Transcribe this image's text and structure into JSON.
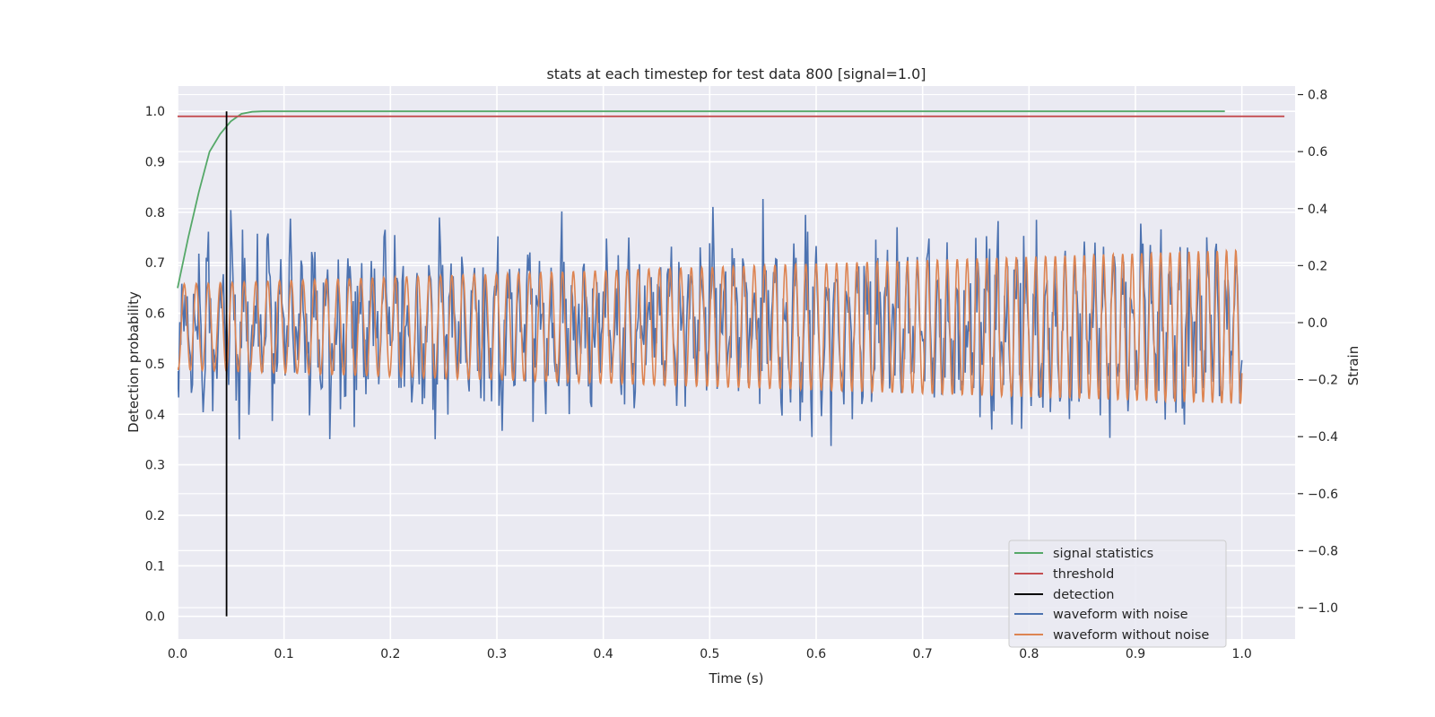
{
  "chart_data": {
    "type": "line",
    "title": "stats at each timestep for test data 800 [signal=1.0]",
    "xlabel": "Time (s)",
    "ylabel": "Detection probability",
    "y2label": "Strain",
    "xlim": [
      0.0,
      1.05
    ],
    "ylim": [
      -0.045,
      1.05
    ],
    "y2lim": [
      -1.11,
      0.83
    ],
    "xticks": [
      "0.0",
      "0.1",
      "0.2",
      "0.3",
      "0.4",
      "0.5",
      "0.6",
      "0.7",
      "0.8",
      "0.9",
      "1.0"
    ],
    "yticks": [
      "0.0",
      "0.1",
      "0.2",
      "0.3",
      "0.4",
      "0.5",
      "0.6",
      "0.7",
      "0.8",
      "0.9",
      "1.0"
    ],
    "y2ticks": [
      "−1.0",
      "−0.8",
      "−0.6",
      "−0.4",
      "−0.2",
      "0.0",
      "0.2",
      "0.4",
      "0.6",
      "0.8"
    ],
    "grid": true,
    "legend_position": "lower-right",
    "series": [
      {
        "name": "signal statistics",
        "color": "#55a868",
        "axis": "left",
        "x": [
          0.0,
          0.01,
          0.02,
          0.03,
          0.04,
          0.05,
          0.06,
          0.07,
          0.08,
          0.1,
          0.2,
          0.4,
          0.6,
          0.8,
          0.984
        ],
        "y": [
          0.65,
          0.75,
          0.84,
          0.92,
          0.955,
          0.98,
          0.995,
          0.999,
          1.0,
          1.0,
          1.0,
          1.0,
          1.0,
          1.0,
          1.0
        ]
      },
      {
        "name": "threshold",
        "color": "#c44e52",
        "axis": "left",
        "x": [
          0.0,
          1.04
        ],
        "y": [
          0.99,
          0.99
        ]
      },
      {
        "name": "detection",
        "color": "#000000",
        "axis": "left",
        "x": [
          0.046,
          0.046
        ],
        "y": [
          0.0,
          1.0
        ]
      },
      {
        "name": "waveform with noise",
        "color": "#4c72b0",
        "axis": "right",
        "samples": 1000,
        "t_start": 0.0,
        "t_end": 1.0,
        "noise_std": 0.3
      },
      {
        "name": "waveform without noise",
        "color": "#dd8452",
        "axis": "right",
        "t_start": 0.0,
        "t_end": 1.0,
        "cycles": 88,
        "amplitude_start": 0.15,
        "amplitude_end": 0.27,
        "offset": -0.015
      }
    ]
  }
}
